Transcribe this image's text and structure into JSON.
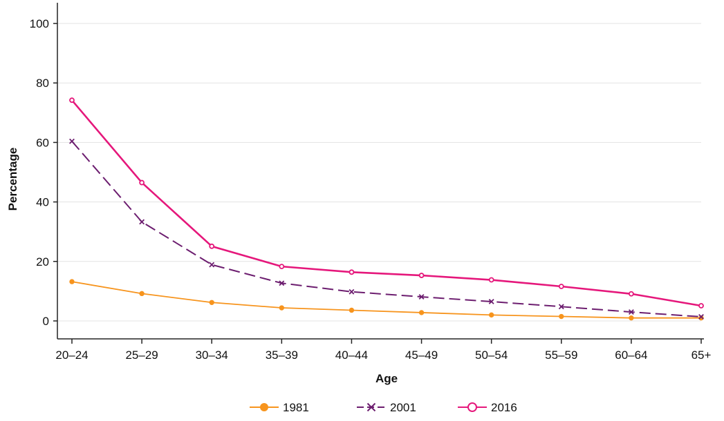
{
  "chart_data": {
    "type": "line",
    "categories": [
      "20–24",
      "25–29",
      "30–34",
      "35–39",
      "40–44",
      "45–49",
      "50–54",
      "55–59",
      "60–64",
      "65+"
    ],
    "series": [
      {
        "name": "1981",
        "values": [
          13.2,
          9.2,
          6.2,
          4.4,
          3.6,
          2.8,
          2.0,
          1.5,
          1.0,
          1.0
        ],
        "color": "#f7941d",
        "marker": "filled-circle",
        "line_style": "solid"
      },
      {
        "name": "2001",
        "values": [
          60.4,
          33.3,
          18.9,
          12.7,
          9.8,
          8.1,
          6.5,
          4.8,
          3.0,
          1.4
        ],
        "color": "#6c1d6f",
        "marker": "cross",
        "line_style": "dashed"
      },
      {
        "name": "2016",
        "values": [
          74.2,
          46.5,
          25.1,
          18.3,
          16.4,
          15.3,
          13.8,
          11.6,
          9.1,
          5.1
        ],
        "color": "#e5177b",
        "marker": "open-circle",
        "line_style": "solid"
      }
    ],
    "y_ticks": [
      0,
      20,
      40,
      60,
      80,
      100
    ],
    "xlabel": "Age",
    "ylabel": "Percentage",
    "ylim": [
      -6,
      107
    ],
    "grid": true,
    "legend_position": "bottom"
  }
}
